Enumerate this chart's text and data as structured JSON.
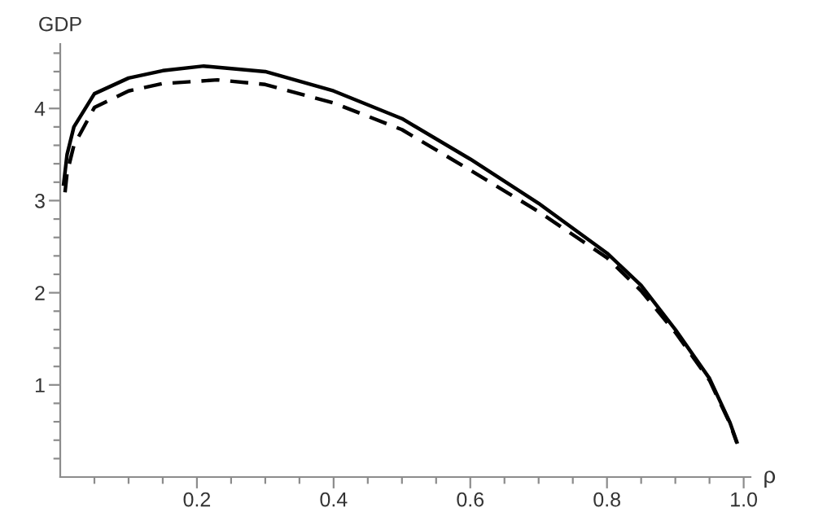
{
  "chart_data": {
    "type": "line",
    "xlabel": "ρ",
    "ylabel": "GDP",
    "xlim": [
      0,
      1.01
    ],
    "ylim": [
      0,
      4.7
    ],
    "xticks": [
      {
        "value": 0.05,
        "label": null
      },
      {
        "value": 0.1,
        "label": null
      },
      {
        "value": 0.15,
        "label": null
      },
      0.2,
      {
        "value": 0.25,
        "label": null
      },
      {
        "value": 0.3,
        "label": null
      },
      {
        "value": 0.35,
        "label": null
      },
      0.4,
      {
        "value": 0.45,
        "label": null
      },
      {
        "value": 0.5,
        "label": null
      },
      {
        "value": 0.55,
        "label": null
      },
      0.6,
      {
        "value": 0.65,
        "label": null
      },
      {
        "value": 0.7,
        "label": null
      },
      {
        "value": 0.75,
        "label": null
      },
      0.8,
      {
        "value": 0.85,
        "label": null
      },
      {
        "value": 0.9,
        "label": null
      },
      {
        "value": 0.95,
        "label": null
      },
      {
        "value": 1.0,
        "label": "1.0"
      }
    ],
    "yticks": [
      {
        "value": 0.2,
        "label": null
      },
      {
        "value": 0.4,
        "label": null
      },
      {
        "value": 0.6,
        "label": null
      },
      {
        "value": 0.8,
        "label": null
      },
      1,
      {
        "value": 1.2,
        "label": null
      },
      {
        "value": 1.4,
        "label": null
      },
      {
        "value": 1.6,
        "label": null
      },
      {
        "value": 1.8,
        "label": null
      },
      2,
      {
        "value": 2.2,
        "label": null
      },
      {
        "value": 2.4,
        "label": null
      },
      {
        "value": 2.6,
        "label": null
      },
      {
        "value": 2.8,
        "label": null
      },
      3,
      {
        "value": 3.2,
        "label": null
      },
      {
        "value": 3.4,
        "label": null
      },
      {
        "value": 3.6,
        "label": null
      },
      {
        "value": 3.8,
        "label": null
      },
      4,
      {
        "value": 4.2,
        "label": null
      },
      {
        "value": 4.4,
        "label": null
      },
      {
        "value": 4.6,
        "label": null
      }
    ],
    "grid": false,
    "legend": false,
    "marker": "none",
    "series": [
      {
        "color": "#000000",
        "line_style": "solid",
        "x": [
          0.005,
          0.01,
          0.02,
          0.05,
          0.1,
          0.15,
          0.21,
          0.3,
          0.4,
          0.5,
          0.6,
          0.7,
          0.8,
          0.85,
          0.9,
          0.95,
          0.98,
          0.99
        ],
        "values": [
          3.18,
          3.5,
          3.8,
          4.16,
          4.33,
          4.41,
          4.46,
          4.4,
          4.19,
          3.89,
          3.45,
          2.97,
          2.43,
          2.08,
          1.6,
          1.07,
          0.59,
          0.38
        ]
      },
      {
        "color": "#000000",
        "line_style": "dashed",
        "x": [
          0.007,
          0.01,
          0.02,
          0.05,
          0.1,
          0.15,
          0.23,
          0.3,
          0.4,
          0.5,
          0.6,
          0.7,
          0.8,
          0.85,
          0.9,
          0.95,
          0.98,
          0.99
        ],
        "values": [
          3.09,
          3.3,
          3.6,
          4.01,
          4.19,
          4.27,
          4.31,
          4.26,
          4.06,
          3.77,
          3.33,
          2.88,
          2.38,
          2.02,
          1.57,
          1.05,
          0.58,
          0.37
        ]
      }
    ]
  }
}
